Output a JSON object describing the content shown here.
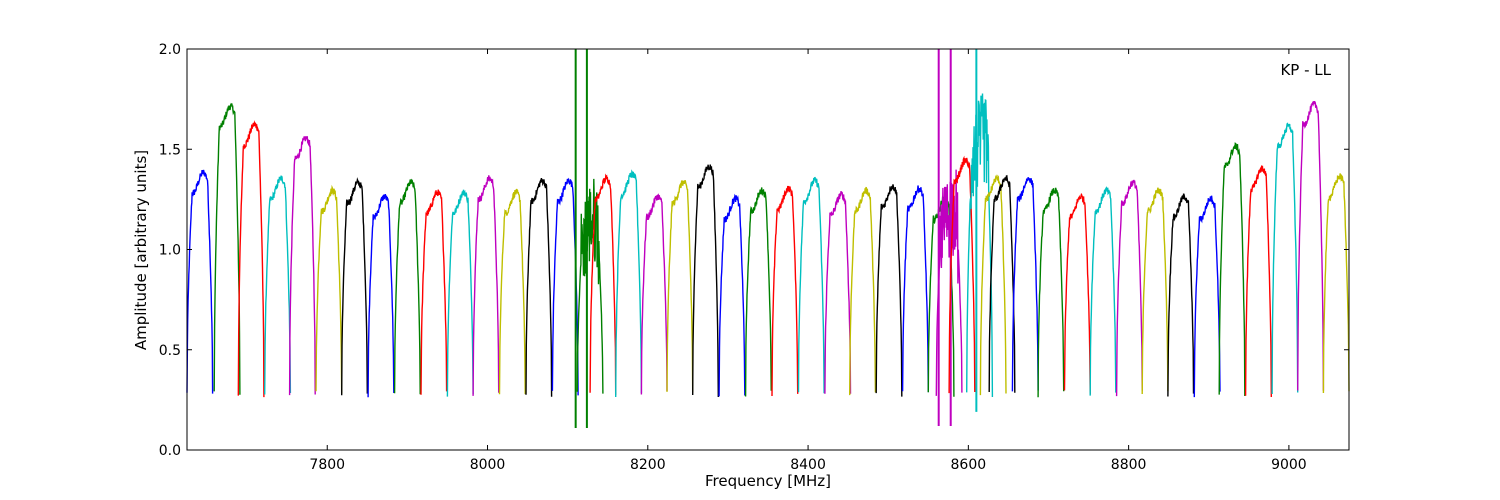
{
  "chart_data": {
    "type": "line",
    "title": "",
    "annotation": "KP - LL",
    "xlabel": "Frequency [MHz]",
    "ylabel": "Amplitude [arbitrary units]",
    "xlim": [
      7625,
      9075
    ],
    "ylim": [
      0.0,
      2.0
    ],
    "xticks": [
      7800,
      8000,
      8200,
      8400,
      8600,
      8800,
      9000
    ],
    "xtick_labels": [
      "7800",
      "8000",
      "8200",
      "8400",
      "8600",
      "8800",
      "9000"
    ],
    "yticks": [
      0.0,
      0.5,
      1.0,
      1.5,
      2.0
    ],
    "ytick_labels": [
      "0.0",
      "0.5",
      "1.0",
      "1.5",
      "2.0"
    ],
    "grid": false,
    "legend": "none",
    "color_cycle": [
      "#0000ff",
      "#008000",
      "#ff0000",
      "#00bfbf",
      "#bf00bf",
      "#bfbf00",
      "#000000"
    ],
    "channel_width_mhz": 32,
    "channels": [
      {
        "start": 7625,
        "peak": 1.33,
        "color_index": 0
      },
      {
        "start": 7659,
        "peak": 1.66,
        "color_index": 1
      },
      {
        "start": 7689,
        "peak": 1.57,
        "color_index": 2
      },
      {
        "start": 7722,
        "peak": 1.3,
        "color_index": 3
      },
      {
        "start": 7753,
        "peak": 1.5,
        "color_index": 4
      },
      {
        "start": 7786,
        "peak": 1.24,
        "color_index": 5
      },
      {
        "start": 7818,
        "peak": 1.28,
        "color_index": 6
      },
      {
        "start": 7851,
        "peak": 1.21,
        "color_index": 0
      },
      {
        "start": 7884,
        "peak": 1.28,
        "color_index": 1
      },
      {
        "start": 7917,
        "peak": 1.23,
        "color_index": 2
      },
      {
        "start": 7950,
        "peak": 1.23,
        "color_index": 3
      },
      {
        "start": 7982,
        "peak": 1.3,
        "color_index": 4
      },
      {
        "start": 8015,
        "peak": 1.23,
        "color_index": 5
      },
      {
        "start": 8048,
        "peak": 1.29,
        "color_index": 6
      },
      {
        "start": 8081,
        "peak": 1.29,
        "color_index": 0
      },
      {
        "start": 8112,
        "peak": 1.1,
        "color_index": 1,
        "rfi_spikes": [
          8110,
          8124
        ],
        "rfi_min": 0.11
      },
      {
        "start": 8128,
        "peak": 1.3,
        "color_index": 2
      },
      {
        "start": 8160,
        "peak": 1.32,
        "color_index": 3
      },
      {
        "start": 8192,
        "peak": 1.21,
        "color_index": 4
      },
      {
        "start": 8224,
        "peak": 1.28,
        "color_index": 5
      },
      {
        "start": 8256,
        "peak": 1.36,
        "color_index": 6
      },
      {
        "start": 8289,
        "peak": 1.2,
        "color_index": 0
      },
      {
        "start": 8322,
        "peak": 1.24,
        "color_index": 1
      },
      {
        "start": 8355,
        "peak": 1.25,
        "color_index": 2
      },
      {
        "start": 8388,
        "peak": 1.29,
        "color_index": 3
      },
      {
        "start": 8421,
        "peak": 1.22,
        "color_index": 4
      },
      {
        "start": 8452,
        "peak": 1.24,
        "color_index": 5
      },
      {
        "start": 8485,
        "peak": 1.26,
        "color_index": 6
      },
      {
        "start": 8518,
        "peak": 1.25,
        "color_index": 0
      },
      {
        "start": 8550,
        "peak": 1.2,
        "color_index": 1
      },
      {
        "start": 8560,
        "peak": 1.15,
        "color_index": 4,
        "rfi_spikes": [
          8563,
          8578
        ],
        "rfi_min": 0.12
      },
      {
        "start": 8576,
        "peak": 1.39,
        "color_index": 2
      },
      {
        "start": 8598,
        "peak": 1.5,
        "color_index": 3,
        "rfi_spikes": [
          8610
        ],
        "rfi_min": 0.19
      },
      {
        "start": 8615,
        "peak": 1.3,
        "color_index": 5
      },
      {
        "start": 8626,
        "peak": 1.3,
        "color_index": 6
      },
      {
        "start": 8655,
        "peak": 1.3,
        "color_index": 0
      },
      {
        "start": 8687,
        "peak": 1.24,
        "color_index": 1
      },
      {
        "start": 8720,
        "peak": 1.21,
        "color_index": 2
      },
      {
        "start": 8752,
        "peak": 1.24,
        "color_index": 3
      },
      {
        "start": 8785,
        "peak": 1.28,
        "color_index": 4
      },
      {
        "start": 8817,
        "peak": 1.24,
        "color_index": 5
      },
      {
        "start": 8849,
        "peak": 1.21,
        "color_index": 6
      },
      {
        "start": 8882,
        "peak": 1.2,
        "color_index": 0
      },
      {
        "start": 8913,
        "peak": 1.46,
        "color_index": 1
      },
      {
        "start": 8946,
        "peak": 1.35,
        "color_index": 2
      },
      {
        "start": 8979,
        "peak": 1.56,
        "color_index": 3
      },
      {
        "start": 9011,
        "peak": 1.67,
        "color_index": 4
      },
      {
        "start": 9043,
        "peak": 1.31,
        "color_index": 5
      }
    ]
  }
}
